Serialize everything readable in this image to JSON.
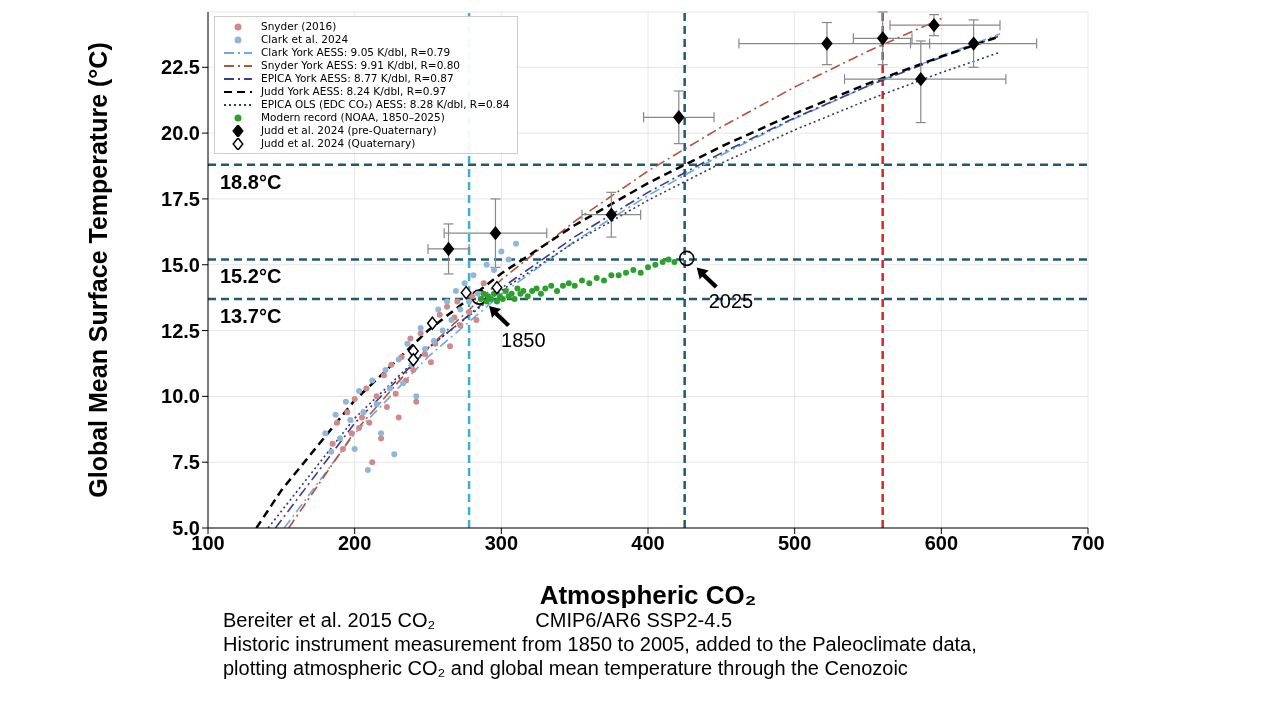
{
  "chart_data": {
    "type": "scatter",
    "xlabel": "Atmospheric CO₂",
    "ylabel": "Global Mean Surface Temperature (°C)",
    "xlim": [
      100,
      700
    ],
    "xticks": [
      100,
      200,
      300,
      400,
      500,
      600,
      700
    ],
    "ylim": [
      5,
      24.6
    ],
    "yticks": [
      {
        "value": 5,
        "label": "5.0"
      },
      7.5,
      {
        "value": 10,
        "label": "10.0"
      },
      12.5,
      {
        "value": 15,
        "label": "15.0"
      },
      17.5,
      {
        "value": 20,
        "label": "20.0"
      },
      22.5
    ],
    "grid": true,
    "legend": "top left",
    "series": [
      {
        "name": "Snyder (2016)",
        "marker": "circle",
        "color": "#d08a8a",
        "x": [
          185,
          188,
          192,
          195,
          198,
          200,
          203,
          205,
          208,
          210,
          212,
          215,
          218,
          220,
          222,
          225,
          228,
          230,
          232,
          235,
          238,
          240,
          242,
          245,
          248,
          252,
          255,
          258,
          263,
          265,
          268,
          270,
          272,
          278,
          280,
          283,
          288
        ],
        "values": [
          8.2,
          9.0,
          8.0,
          9.4,
          8.6,
          9.9,
          8.8,
          9.2,
          10.3,
          9.0,
          7.5,
          10.0,
          8.4,
          10.8,
          9.6,
          11.2,
          10.1,
          9.2,
          11.5,
          10.6,
          12.2,
          11.0,
          9.8,
          12.4,
          11.6,
          11.3,
          12.0,
          13.1,
          13.4,
          11.9,
          13.0,
          13.6,
          12.7,
          13.2,
          13.8,
          12.9,
          14.3
        ]
      },
      {
        "name": "Clark et al. 2024",
        "marker": "circle",
        "color": "#8fb8d8",
        "x": [
          180,
          184,
          187,
          190,
          194,
          197,
          200,
          203,
          206,
          209,
          212,
          215,
          218,
          221,
          224,
          227,
          230,
          233,
          236,
          239,
          242,
          245,
          248,
          254,
          257,
          260,
          263,
          266,
          269,
          272,
          275,
          278,
          281,
          284,
          290,
          295,
          300,
          305,
          310
        ],
        "values": [
          8.6,
          7.9,
          9.3,
          8.4,
          9.8,
          9.1,
          8.0,
          10.2,
          9.4,
          7.2,
          10.6,
          9.7,
          8.6,
          11.0,
          10.3,
          7.8,
          11.4,
          10.5,
          12.0,
          11.2,
          10.0,
          12.6,
          11.8,
          12.1,
          13.3,
          12.5,
          13.6,
          12.9,
          14.0,
          13.3,
          14.3,
          13.6,
          14.6,
          13.9,
          15.0,
          14.8,
          15.5,
          15.2,
          15.8
        ]
      },
      {
        "name": "Clark York AESS: 9.05 K/dbl, R=0.79",
        "type": "line",
        "line_style": "dashdot",
        "color": "#6fa8dc",
        "x": [
          152,
          200,
          250,
          300,
          350,
          400,
          450,
          500,
          550,
          600,
          640
        ],
        "values": [
          5.0,
          8.58,
          11.5,
          13.88,
          15.89,
          17.63,
          19.17,
          20.55,
          21.79,
          22.93,
          23.77
        ]
      },
      {
        "name": "Snyder York AESS: 9.91 K/dbl, R=0.80",
        "type": "line",
        "line_style": "dashdot",
        "color": "#b5523b",
        "x": [
          155,
          200,
          250,
          300,
          350,
          400,
          450,
          500,
          550,
          600
        ],
        "values": [
          5.0,
          8.65,
          11.84,
          14.43,
          16.65,
          18.56,
          20.23,
          21.75,
          23.11,
          24.35
        ]
      },
      {
        "name": "EPICA York AESS: 8.77 K/dbl, R=0.87",
        "type": "line",
        "line_style": "dashdot",
        "color": "#3b3b8f",
        "x": [
          146,
          200,
          250,
          300,
          350,
          400,
          450,
          500,
          550,
          600,
          640
        ],
        "values": [
          5.0,
          8.98,
          11.81,
          14.11,
          16.06,
          17.75,
          19.24,
          20.58,
          21.79,
          22.88,
          23.7
        ]
      },
      {
        "name": "Judd York AESS: 8.24 K/dbl, R=0.97",
        "type": "line",
        "line_style": "dashed",
        "color": "#000000",
        "x": [
          133,
          150,
          200,
          250,
          300,
          350,
          400,
          450,
          500,
          550,
          600,
          640
        ],
        "values": [
          5.0,
          6.43,
          9.85,
          12.5,
          14.67,
          16.5,
          18.1,
          19.49,
          20.74,
          21.88,
          22.91,
          23.68
        ]
      },
      {
        "name": "EPICA OLS (EDC CO₂) AESS: 8.28 K/dbl, R=0.84",
        "type": "line",
        "line_style": "dotted",
        "color": "#2e3a6e",
        "x": [
          141,
          200,
          250,
          300,
          350,
          400,
          450,
          500,
          550,
          600,
          640
        ],
        "values": [
          5.0,
          9.17,
          11.84,
          14.02,
          15.86,
          17.45,
          18.86,
          20.12,
          21.26,
          22.3,
          23.07
        ]
      },
      {
        "name": "Modern record (NOAA, 1850–2025)",
        "marker": "circle",
        "color": "#2ca02c",
        "x": [
          286,
          288,
          290,
          291,
          293,
          295,
          297,
          299,
          301,
          303,
          305,
          307,
          309,
          311,
          313,
          315,
          318,
          321,
          324,
          327,
          330,
          334,
          338,
          342,
          346,
          350,
          355,
          360,
          365,
          370,
          375,
          380,
          385,
          390,
          395,
          400,
          405,
          410,
          414,
          418
        ],
        "values": [
          13.7,
          13.9,
          13.6,
          13.8,
          13.7,
          13.9,
          13.6,
          13.8,
          13.7,
          14.0,
          13.8,
          13.9,
          13.7,
          14.1,
          13.9,
          14.0,
          13.8,
          14.0,
          14.1,
          13.9,
          14.1,
          14.2,
          14.0,
          14.2,
          14.3,
          14.2,
          14.4,
          14.3,
          14.5,
          14.4,
          14.6,
          14.6,
          14.7,
          14.8,
          14.7,
          14.9,
          15.0,
          15.1,
          15.2,
          15.1
        ]
      },
      {
        "name": "Judd et al. 2024 (pre-Quaternary)",
        "marker": "diamond",
        "color": "#000000",
        "x": [
          522,
          560,
          595,
          586,
          622,
          421,
          375,
          296,
          264
        ],
        "values": [
          23.4,
          23.6,
          24.1,
          22.05,
          23.4,
          20.6,
          16.9,
          16.2,
          15.6
        ],
        "errors": [
          0.8,
          1.0,
          0.4,
          [
            20.4,
            23.5
          ],
          0.9,
          1.0,
          0.85,
          1.3,
          0.95
        ],
        "xerrors": [
          [
            462,
            592
          ],
          20,
          [
            565,
            640
          ],
          [
            534,
            644
          ],
          43,
          24,
          20,
          35,
          14
        ]
      },
      {
        "name": "Judd et al. 2024 (Quaternary)",
        "marker": "diamond",
        "color": "#ffffff",
        "x": [
          276,
          297,
          253,
          240,
          240
        ],
        "values": [
          13.94,
          14.13,
          12.78,
          11.72,
          11.39
        ]
      }
    ],
    "ref_lines": [
      {
        "axis": "y",
        "value": 18.8,
        "label": "18.8°C",
        "color": "#1f5a73",
        "line_style": "dashed"
      },
      {
        "axis": "y",
        "value": 15.2,
        "label": "15.2°C",
        "color": "#1f5a73",
        "line_style": "dashed"
      },
      {
        "axis": "y",
        "value": 13.7,
        "label": "13.7°C",
        "color": "#1f5a73",
        "line_style": "dashed"
      },
      {
        "axis": "x",
        "value": 278,
        "color": "#3bb0d0",
        "line_style": "dashed"
      },
      {
        "axis": "x",
        "value": 425,
        "color": "#1f5a73",
        "line_style": "dashed"
      },
      {
        "axis": "x",
        "value": 560,
        "color": "#d62728",
        "line_style": "dashed"
      }
    ],
    "annotations": [
      {
        "text": "1850",
        "x": 284.8,
        "y": 13.77
      },
      {
        "text": "2025",
        "x": 426.4,
        "y": 15.24
      },
      "Bereiter et al. 2015 CO₂",
      "CMIP6/AR6 SSP2-4.5",
      "Historic instrument measurement from 1850 to 2005, added to the Paleoclimate data,",
      "plotting atmospheric CO₂ and global mean temperature through the Cenozoic"
    ]
  }
}
